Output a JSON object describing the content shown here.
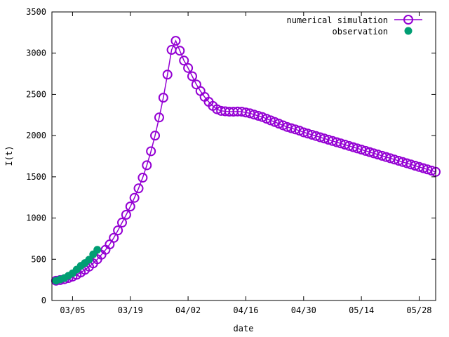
{
  "chart_data": {
    "type": "scatter",
    "xlabel": "date",
    "ylabel": "I(t)",
    "x_ticks": [
      "03/05",
      "03/19",
      "04/02",
      "04/16",
      "04/30",
      "05/14",
      "05/28"
    ],
    "y_ticks": [
      0,
      500,
      1000,
      1500,
      2000,
      2500,
      3000,
      3500
    ],
    "ylim": [
      0,
      3500
    ],
    "xlim": [
      "2020-02-29",
      "2020-06-01"
    ],
    "legend_position": "top-right",
    "grid": false,
    "series": [
      {
        "name": "numerical simulation",
        "style": "line-open-circles",
        "color": "#9400d3",
        "x": [
          "2020-03-01",
          "2020-03-02",
          "2020-03-03",
          "2020-03-04",
          "2020-03-05",
          "2020-03-06",
          "2020-03-07",
          "2020-03-08",
          "2020-03-09",
          "2020-03-10",
          "2020-03-11",
          "2020-03-12",
          "2020-03-13",
          "2020-03-14",
          "2020-03-15",
          "2020-03-16",
          "2020-03-17",
          "2020-03-18",
          "2020-03-19",
          "2020-03-20",
          "2020-03-21",
          "2020-03-22",
          "2020-03-23",
          "2020-03-24",
          "2020-03-25",
          "2020-03-26",
          "2020-03-27",
          "2020-03-28",
          "2020-03-29",
          "2020-03-30",
          "2020-03-31",
          "2020-04-01",
          "2020-04-02",
          "2020-04-03",
          "2020-04-04",
          "2020-04-05",
          "2020-04-06",
          "2020-04-07",
          "2020-04-08",
          "2020-04-09",
          "2020-04-10",
          "2020-04-11",
          "2020-04-12",
          "2020-04-13",
          "2020-04-14",
          "2020-04-15",
          "2020-04-16",
          "2020-04-17",
          "2020-04-18",
          "2020-04-19",
          "2020-04-20",
          "2020-04-21",
          "2020-04-22",
          "2020-04-23",
          "2020-04-24",
          "2020-04-25",
          "2020-04-26",
          "2020-04-27",
          "2020-04-28",
          "2020-04-29",
          "2020-04-30",
          "2020-05-01",
          "2020-05-02",
          "2020-05-03",
          "2020-05-04",
          "2020-05-05",
          "2020-05-06",
          "2020-05-07",
          "2020-05-08",
          "2020-05-09",
          "2020-05-10",
          "2020-05-11",
          "2020-05-12",
          "2020-05-13",
          "2020-05-14",
          "2020-05-15",
          "2020-05-16",
          "2020-05-17",
          "2020-05-18",
          "2020-05-19",
          "2020-05-20",
          "2020-05-21",
          "2020-05-22",
          "2020-05-23",
          "2020-05-24",
          "2020-05-25",
          "2020-05-26",
          "2020-05-27",
          "2020-05-28",
          "2020-05-29",
          "2020-05-30",
          "2020-05-31",
          "2020-06-01"
        ],
        "y": [
          240,
          248,
          258,
          272,
          290,
          312,
          340,
          372,
          410,
          450,
          500,
          555,
          615,
          680,
          760,
          850,
          945,
          1040,
          1140,
          1245,
          1360,
          1490,
          1640,
          1810,
          2000,
          2220,
          2460,
          2740,
          3040,
          3150,
          3030,
          2910,
          2820,
          2720,
          2620,
          2540,
          2470,
          2410,
          2360,
          2320,
          2300,
          2295,
          2290,
          2290,
          2292,
          2290,
          2280,
          2270,
          2255,
          2240,
          2225,
          2205,
          2185,
          2165,
          2145,
          2125,
          2105,
          2090,
          2075,
          2060,
          2040,
          2025,
          2010,
          1995,
          1980,
          1965,
          1950,
          1935,
          1920,
          1905,
          1890,
          1875,
          1860,
          1845,
          1830,
          1815,
          1800,
          1785,
          1770,
          1755,
          1740,
          1725,
          1710,
          1695,
          1680,
          1665,
          1650,
          1635,
          1620,
          1605,
          1590,
          1575,
          1560
        ]
      },
      {
        "name": "observation",
        "style": "filled-circles",
        "color": "#009e73",
        "x": [
          "2020-03-01",
          "2020-03-02",
          "2020-03-03",
          "2020-03-04",
          "2020-03-05",
          "2020-03-06",
          "2020-03-07",
          "2020-03-08",
          "2020-03-09",
          "2020-03-10",
          "2020-03-11"
        ],
        "y": [
          240,
          255,
          272,
          300,
          330,
          375,
          420,
          455,
          495,
          560,
          615
        ]
      }
    ]
  }
}
